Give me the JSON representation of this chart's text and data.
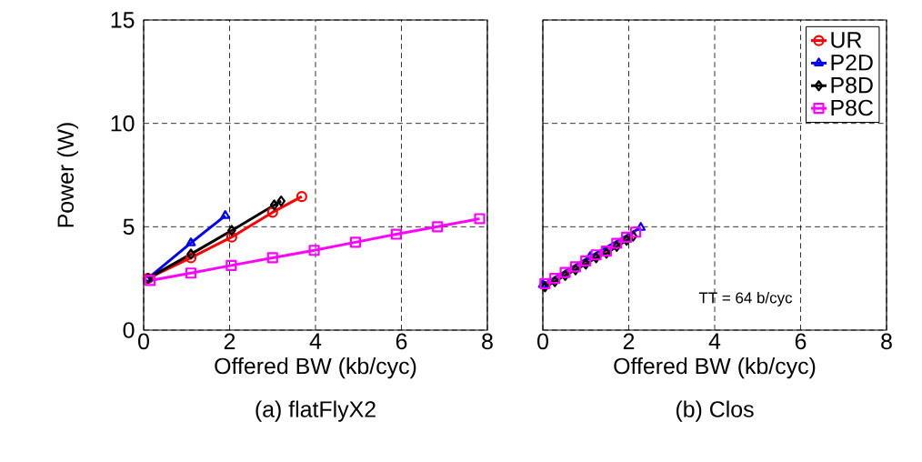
{
  "chart_data": [
    {
      "type": "line",
      "title": "(a) flatFlyX2",
      "xlabel": "Offered BW (kb/cyc)",
      "ylabel": "Power (W)",
      "xlim": [
        0,
        8
      ],
      "ylim": [
        0,
        15
      ],
      "xticks": [
        0,
        2,
        4,
        6,
        8
      ],
      "yticks": [
        0,
        5,
        10,
        15
      ],
      "grid": true,
      "line_style": "solid",
      "series": [
        {
          "color": "#ff0000",
          "marker": "circle",
          "x": [
            0.1,
            1.1,
            2.05,
            3.0,
            3.68
          ],
          "values": [
            2.5,
            3.5,
            4.5,
            5.7,
            6.46
          ]
        },
        {
          "color": "#0000ff",
          "marker": "triangle",
          "x": [
            0.1,
            1.1,
            1.9
          ],
          "values": [
            2.5,
            4.22,
            5.54
          ]
        },
        {
          "color": "#000000",
          "marker": "diamond",
          "x": [
            0.1,
            1.1,
            2.05,
            3.04,
            3.2
          ],
          "values": [
            2.5,
            3.68,
            4.82,
            6.05,
            6.24
          ]
        },
        {
          "color": "#ff00ff",
          "marker": "square",
          "x": [
            0.15,
            1.1,
            2.04,
            3.0,
            3.97,
            4.93,
            5.88,
            6.84,
            7.82
          ],
          "values": [
            2.4,
            2.76,
            3.13,
            3.5,
            3.86,
            4.25,
            4.64,
            5.0,
            5.39
          ]
        }
      ]
    },
    {
      "type": "line",
      "title": "(b) Clos",
      "xlabel": "Offered BW (kb/cyc)",
      "xlim": [
        0,
        8
      ],
      "ylim": [
        0,
        15
      ],
      "xticks": [
        0,
        2,
        4,
        6,
        8
      ],
      "yticks": [
        0,
        5,
        10,
        15
      ],
      "grid": true,
      "line_style": "solid",
      "tick_labels": "x",
      "legend": "top right",
      "annotations": [
        "TT = 64 b/cyc"
      ],
      "series": [
        {
          "name": "UR",
          "color": "#ff0000",
          "marker": "circle"
        },
        {
          "name": "P2D",
          "color": "#0000ff",
          "marker": "triangle",
          "x": [
            0.0,
            1.1,
            2.28
          ],
          "values": [
            2.2,
            3.55,
            4.96
          ]
        },
        {
          "name": "P8D",
          "color": "#000000",
          "marker": "diamond",
          "x": [
            0.05,
            0.28,
            0.52,
            0.76,
            1.0,
            1.24,
            1.48,
            1.72,
            1.95,
            2.1
          ],
          "values": [
            2.1,
            2.35,
            2.65,
            2.92,
            3.2,
            3.5,
            3.72,
            4.05,
            4.35,
            4.55
          ]
        },
        {
          "name": "P8C",
          "color": "#ff00ff",
          "marker": "square",
          "x": [
            0.05,
            0.28,
            0.52,
            0.76,
            1.0,
            1.24,
            1.48,
            1.72,
            1.95,
            2.16
          ],
          "values": [
            2.25,
            2.5,
            2.79,
            3.06,
            3.35,
            3.64,
            3.82,
            4.2,
            4.49,
            4.74
          ]
        }
      ]
    }
  ]
}
